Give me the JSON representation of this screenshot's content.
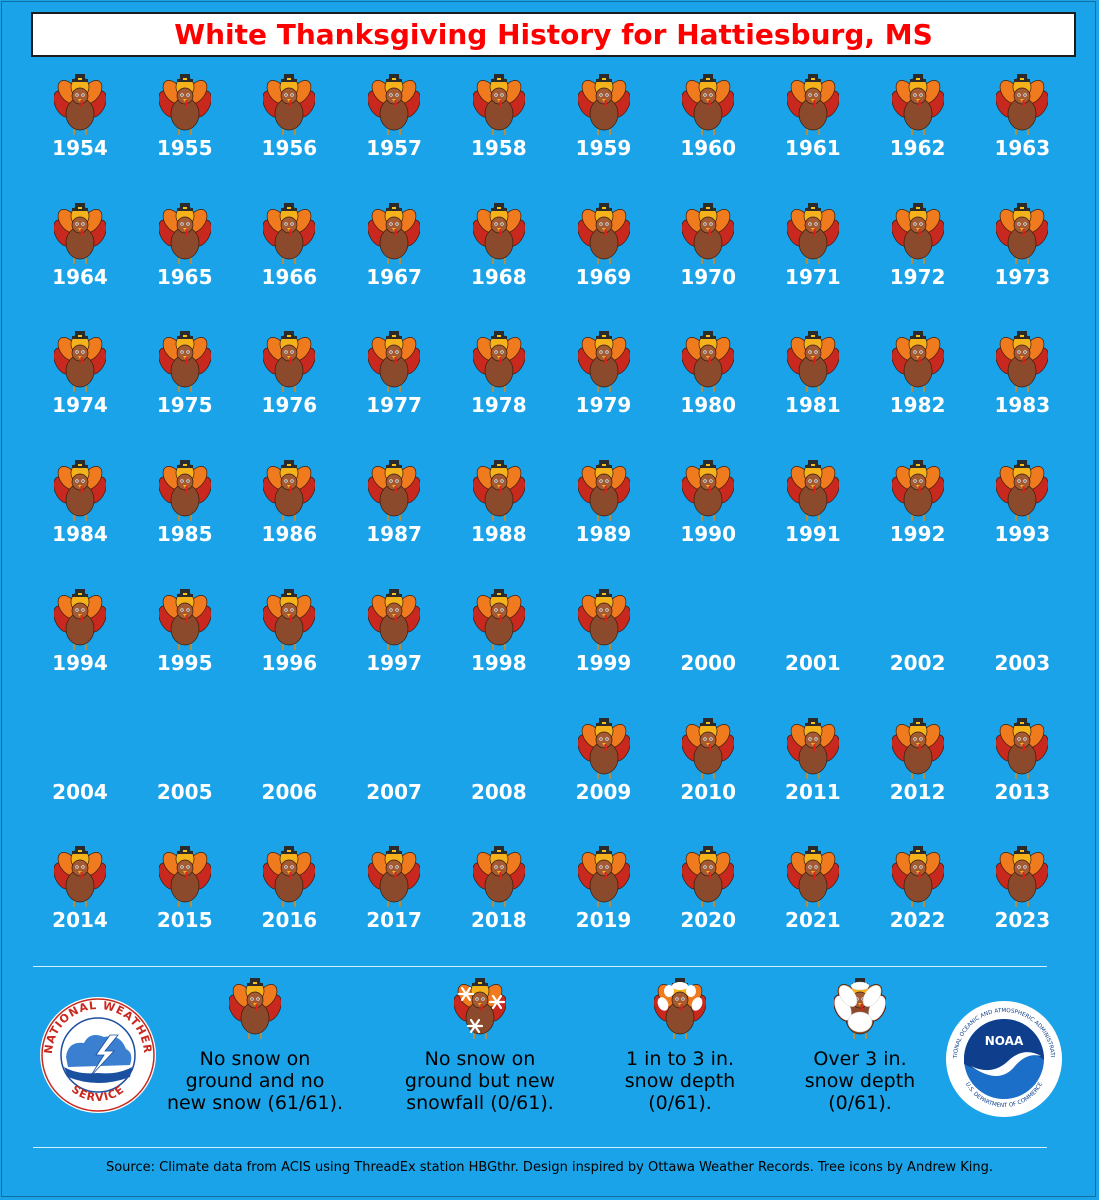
{
  "title": "White Thanksgiving History for Hattiesburg, MS",
  "chart_data": {
    "type": "table",
    "title": "White Thanksgiving History for Hattiesburg, MS",
    "categories": [
      "No snow on ground and no new snow (61/61).",
      "No snow on ground but new snowfall (0/61).",
      "1 in to 3 in. snow depth (0/61).",
      "Over 3 in. snow depth (0/61)."
    ],
    "counts": [
      61,
      0,
      0,
      0
    ],
    "total": 61,
    "years": [
      {
        "year": "1954",
        "category": 0
      },
      {
        "year": "1955",
        "category": 0
      },
      {
        "year": "1956",
        "category": 0
      },
      {
        "year": "1957",
        "category": 0
      },
      {
        "year": "1958",
        "category": 0
      },
      {
        "year": "1959",
        "category": 0
      },
      {
        "year": "1960",
        "category": 0
      },
      {
        "year": "1961",
        "category": 0
      },
      {
        "year": "1962",
        "category": 0
      },
      {
        "year": "1963",
        "category": 0
      },
      {
        "year": "1964",
        "category": 0
      },
      {
        "year": "1965",
        "category": 0
      },
      {
        "year": "1966",
        "category": 0
      },
      {
        "year": "1967",
        "category": 0
      },
      {
        "year": "1968",
        "category": 0
      },
      {
        "year": "1969",
        "category": 0
      },
      {
        "year": "1970",
        "category": 0
      },
      {
        "year": "1971",
        "category": 0
      },
      {
        "year": "1972",
        "category": 0
      },
      {
        "year": "1973",
        "category": 0
      },
      {
        "year": "1974",
        "category": 0
      },
      {
        "year": "1975",
        "category": 0
      },
      {
        "year": "1976",
        "category": 0
      },
      {
        "year": "1977",
        "category": 0
      },
      {
        "year": "1978",
        "category": 0
      },
      {
        "year": "1979",
        "category": 0
      },
      {
        "year": "1980",
        "category": 0
      },
      {
        "year": "1981",
        "category": 0
      },
      {
        "year": "1982",
        "category": 0
      },
      {
        "year": "1983",
        "category": 0
      },
      {
        "year": "1984",
        "category": 0
      },
      {
        "year": "1985",
        "category": 0
      },
      {
        "year": "1986",
        "category": 0
      },
      {
        "year": "1987",
        "category": 0
      },
      {
        "year": "1988",
        "category": 0
      },
      {
        "year": "1989",
        "category": 0
      },
      {
        "year": "1990",
        "category": 0
      },
      {
        "year": "1991",
        "category": 0
      },
      {
        "year": "1992",
        "category": 0
      },
      {
        "year": "1993",
        "category": 0
      },
      {
        "year": "1994",
        "category": 0
      },
      {
        "year": "1995",
        "category": 0
      },
      {
        "year": "1996",
        "category": 0
      },
      {
        "year": "1997",
        "category": 0
      },
      {
        "year": "1998",
        "category": 0
      },
      {
        "year": "1999",
        "category": 0
      },
      {
        "year": "2000",
        "category": null
      },
      {
        "year": "2001",
        "category": null
      },
      {
        "year": "2002",
        "category": null
      },
      {
        "year": "2003",
        "category": null
      },
      {
        "year": "2004",
        "category": null
      },
      {
        "year": "2005",
        "category": null
      },
      {
        "year": "2006",
        "category": null
      },
      {
        "year": "2007",
        "category": null
      },
      {
        "year": "2008",
        "category": null
      },
      {
        "year": "2009",
        "category": 0
      },
      {
        "year": "2010",
        "category": 0
      },
      {
        "year": "2011",
        "category": 0
      },
      {
        "year": "2012",
        "category": 0
      },
      {
        "year": "2013",
        "category": 0
      },
      {
        "year": "2014",
        "category": 0
      },
      {
        "year": "2015",
        "category": 0
      },
      {
        "year": "2016",
        "category": 0
      },
      {
        "year": "2017",
        "category": 0
      },
      {
        "year": "2018",
        "category": 0
      },
      {
        "year": "2019",
        "category": 0
      },
      {
        "year": "2020",
        "category": 0
      },
      {
        "year": "2021",
        "category": 0
      },
      {
        "year": "2022",
        "category": 0
      },
      {
        "year": "2023",
        "category": 0
      }
    ]
  },
  "legend": [
    {
      "icon": "turkey-icon",
      "line1": "No snow on",
      "line2": "ground and no",
      "line3": "new snow (61/61)."
    },
    {
      "icon": "turkey-snowflakes-icon",
      "line1": "No snow on",
      "line2": "ground but new",
      "line3": "snowfall (0/61)."
    },
    {
      "icon": "turkey-light-snow-icon",
      "line1": "1 in to 3 in.",
      "line2": "snow depth",
      "line3": "(0/61)."
    },
    {
      "icon": "turkey-deep-snow-icon",
      "line1": "Over 3 in.",
      "line2": "snow depth",
      "line3": "(0/61)."
    }
  ],
  "logos": {
    "nws": {
      "top": "NATIONAL WEATHER",
      "bottom": "SERVICE"
    },
    "noaa": {
      "center": "NOAA",
      "ring": "NATIONAL OCEANIC AND ATMOSPHERIC ADMINISTRATION",
      "ring_bottom": "U.S. DEPARTMENT OF COMMERCE"
    }
  },
  "source": "Source: Climate data from ACIS using ThreadEx station HBGthr. Design inspired by Ottawa Weather Records. Tree icons by Andrew King.",
  "colors": {
    "background": "#1aa3e8",
    "title": "#ff0000",
    "turkey_body": "#8b4a2b",
    "feather_red": "#c8281e",
    "feather_orange": "#f07a1e",
    "feather_yellow": "#f6b21b",
    "hat": "#2b2b2b"
  }
}
